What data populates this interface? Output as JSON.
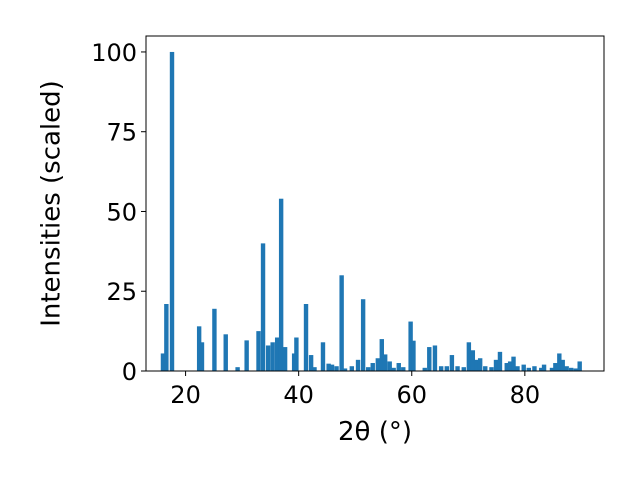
{
  "chart_data": {
    "type": "bar",
    "title": "",
    "xlabel": "2θ (°)",
    "ylabel": "Intensities (scaled)",
    "xlim": [
      13,
      94
    ],
    "ylim": [
      0,
      105
    ],
    "xticks": [
      20,
      40,
      60,
      80
    ],
    "yticks": [
      0,
      25,
      50,
      75,
      100
    ],
    "grid": false,
    "bar_color": "#1f77b4",
    "x": [
      16.0,
      16.6,
      17.6,
      22.4,
      22.9,
      25.1,
      27.1,
      29.2,
      30.8,
      32.9,
      33.7,
      34.6,
      35.4,
      36.2,
      36.9,
      37.6,
      39.2,
      39.6,
      41.3,
      42.2,
      42.8,
      44.3,
      45.3,
      45.9,
      46.7,
      47.6,
      48.2,
      49.4,
      50.5,
      51.4,
      52.3,
      53.1,
      54.0,
      54.7,
      55.3,
      56.1,
      56.8,
      57.7,
      58.5,
      59.8,
      60.3,
      62.3,
      63.1,
      64.1,
      65.2,
      66.2,
      67.1,
      68.1,
      69.2,
      70.1,
      70.8,
      71.4,
      72.1,
      73.0,
      74.1,
      74.9,
      75.6,
      76.8,
      77.4,
      78.0,
      78.7,
      79.8,
      80.7,
      81.7,
      82.9,
      83.4,
      84.8,
      85.4,
      86.1,
      86.7,
      87.4,
      88.2,
      89.0,
      89.7
    ],
    "values": [
      5.5,
      21,
      100,
      14,
      9,
      19.5,
      11.5,
      1.2,
      9.6,
      12.5,
      40,
      8,
      9,
      10.5,
      54,
      7.5,
      5.5,
      10.5,
      21,
      5,
      1.2,
      9,
      2.3,
      2,
      1.5,
      30,
      0.8,
      1.5,
      3.5,
      22.5,
      1.2,
      2.5,
      4,
      10,
      5.2,
      3,
      1,
      2.5,
      1.2,
      15.5,
      9.5,
      1,
      7.5,
      8,
      1.5,
      1.5,
      5,
      1.5,
      1.2,
      9,
      6.5,
      3.5,
      4,
      1.5,
      1.2,
      3.5,
      6,
      2.5,
      3,
      4.5,
      1.5,
      2,
      1,
      1.5,
      1,
      2,
      1,
      2.5,
      5.5,
      3.5,
      1.5,
      1,
      0.8,
      3
    ]
  }
}
